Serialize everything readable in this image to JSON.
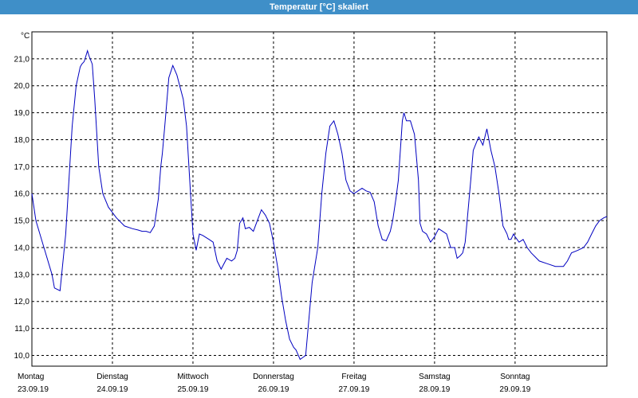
{
  "window": {
    "title": "Temperatur [°C] skaliert"
  },
  "colors": {
    "titlebar": "#3f8fc8",
    "line": "#0000c0",
    "grid": "#000000"
  },
  "chart_data": {
    "type": "line",
    "title": "Temperatur [°C] skaliert",
    "ylabel": "°C",
    "xlabel": "",
    "ylim": [
      9.6,
      22.0
    ],
    "xlim": [
      0,
      7.14
    ],
    "x_unit": "days since Monday 23.09.19 00:00",
    "grid": true,
    "yticks": [
      "10,0",
      "11,0",
      "12,0",
      "13,0",
      "14,0",
      "15,0",
      "16,0",
      "17,0",
      "18,0",
      "19,0",
      "20,0",
      "21,0"
    ],
    "ytick_values": [
      10,
      11,
      12,
      13,
      14,
      15,
      16,
      17,
      18,
      19,
      20,
      21
    ],
    "days": [
      {
        "weekday": "Montag",
        "date": "23.09.19"
      },
      {
        "weekday": "Dienstag",
        "date": "24.09.19"
      },
      {
        "weekday": "Mittwoch",
        "date": "25.09.19"
      },
      {
        "weekday": "Donnerstag",
        "date": "26.09.19"
      },
      {
        "weekday": "Freitag",
        "date": "27.09.19"
      },
      {
        "weekday": "Samstag",
        "date": "28.09.19"
      },
      {
        "weekday": "Sonntag",
        "date": "29.09.19"
      }
    ],
    "series": [
      {
        "x": [
          0,
          0.05,
          0.15,
          0.25,
          0.28,
          0.35,
          0.42,
          0.5,
          0.55,
          0.6,
          0.62,
          0.65,
          0.69,
          0.71,
          0.75,
          0.78,
          0.8,
          0.83,
          0.88,
          0.95,
          1.05,
          1.15,
          1.25,
          1.32,
          1.37,
          1.42,
          1.47,
          1.52,
          1.57,
          1.6,
          1.62,
          1.65,
          1.7,
          1.75,
          1.8,
          1.88,
          1.92,
          1.95,
          1.97,
          2.0,
          2.04,
          2.08,
          2.12,
          2.2,
          2.25,
          2.3,
          2.35,
          2.42,
          2.48,
          2.52,
          2.55,
          2.58,
          2.62,
          2.65,
          2.7,
          2.75,
          2.8,
          2.85,
          2.9,
          2.95,
          3.0,
          3.05,
          3.1,
          3.15,
          3.2,
          3.25,
          3.28,
          3.33,
          3.4,
          3.48,
          3.55,
          3.6,
          3.65,
          3.7,
          3.75,
          3.8,
          3.85,
          3.9,
          3.95,
          4.0,
          4.05,
          4.1,
          4.15,
          4.2,
          4.25,
          4.3,
          4.35,
          4.4,
          4.45,
          4.48,
          4.52,
          4.55,
          4.6,
          4.62,
          4.65,
          4.7,
          4.75,
          4.8,
          4.82,
          4.85,
          4.9,
          4.95,
          5.0,
          5.05,
          5.1,
          5.15,
          5.2,
          5.25,
          5.28,
          5.32,
          5.35,
          5.38,
          5.42,
          5.45,
          5.48,
          5.52,
          5.55,
          5.6,
          5.65,
          5.7,
          5.75,
          5.8,
          5.85,
          5.9,
          5.92,
          5.95,
          5.98,
          6.0,
          6.05,
          6.1,
          6.15,
          6.2,
          6.3,
          6.4,
          6.5,
          6.55,
          6.6,
          6.65,
          6.7,
          6.78,
          6.85,
          6.9,
          6.95,
          7.0,
          7.05,
          7.1,
          7.14
        ],
        "y": [
          16.0,
          15.0,
          14.0,
          13.0,
          12.5,
          12.4,
          14.5,
          18.5,
          20.0,
          20.7,
          20.8,
          20.9,
          21.3,
          21.1,
          20.8,
          19.5,
          18.5,
          17.0,
          16.0,
          15.5,
          15.1,
          14.8,
          14.7,
          14.65,
          14.6,
          14.6,
          14.55,
          14.8,
          15.8,
          17.0,
          17.5,
          18.5,
          20.3,
          20.75,
          20.4,
          19.5,
          18.5,
          17.0,
          16.0,
          14.5,
          13.9,
          14.5,
          14.45,
          14.3,
          14.2,
          13.5,
          13.2,
          13.6,
          13.5,
          13.6,
          13.9,
          14.9,
          15.1,
          14.7,
          14.75,
          14.6,
          15.0,
          15.4,
          15.2,
          14.9,
          14.2,
          13.3,
          12.2,
          11.3,
          10.6,
          10.3,
          10.2,
          9.85,
          10.0,
          12.7,
          14.0,
          16.0,
          17.5,
          18.5,
          18.7,
          18.2,
          17.5,
          16.5,
          16.1,
          16.0,
          16.1,
          16.2,
          16.1,
          16.05,
          15.7,
          14.8,
          14.3,
          14.25,
          14.6,
          15.0,
          15.8,
          16.5,
          18.7,
          19.0,
          18.7,
          18.7,
          18.2,
          16.5,
          14.9,
          14.6,
          14.5,
          14.2,
          14.4,
          14.7,
          14.6,
          14.5,
          14.0,
          14.0,
          13.6,
          13.7,
          13.8,
          14.2,
          15.5,
          16.5,
          17.6,
          17.9,
          18.1,
          17.8,
          18.4,
          17.6,
          17.0,
          16.0,
          14.8,
          14.5,
          14.3,
          14.3,
          14.5,
          14.4,
          14.2,
          14.3,
          14.0,
          13.8,
          13.5,
          13.4,
          13.3,
          13.3,
          13.3,
          13.5,
          13.8,
          13.9,
          14.0,
          14.2,
          14.5,
          14.8,
          15.0,
          15.1,
          15.15
        ]
      }
    ]
  }
}
